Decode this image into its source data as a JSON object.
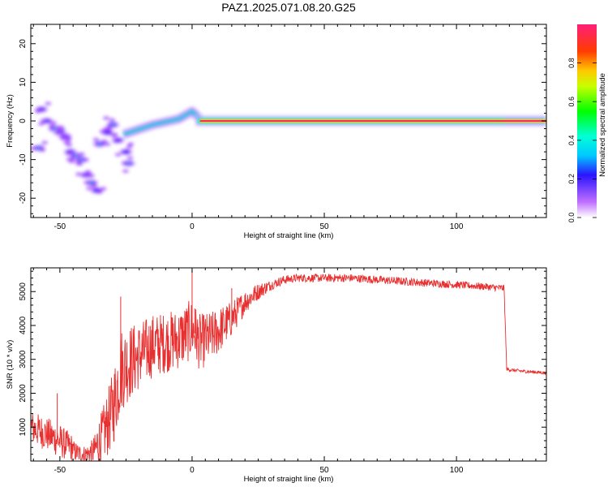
{
  "title": "PAZ1.2025.071.08.20.G25",
  "chart_data": [
    {
      "type": "heatmap",
      "xlabel": "Height of straight line (km)",
      "ylabel": "Frequency (Hz)",
      "xlim": [
        -61,
        134
      ],
      "ylim": [
        -25,
        25
      ],
      "xticks": [
        -50,
        0,
        50,
        100
      ],
      "yticks": [
        -20,
        -10,
        0,
        10,
        20
      ],
      "colorbar": {
        "label": "Normalized spectral amplitude",
        "ticks": [
          "0.0",
          "0.2",
          "0.4",
          "0.6",
          "0.8"
        ],
        "range": [
          0,
          1
        ]
      },
      "features": [
        {
          "name": "main tone",
          "x_start": 3,
          "x_end": 134,
          "freq": 0.0,
          "amplitude": 1.0
        },
        {
          "name": "tracking line",
          "points": [
            [
              -26,
              -3.5
            ],
            [
              -15,
              -1
            ],
            [
              -5,
              0.5
            ],
            [
              0,
              2.5
            ],
            [
              3,
              0.5
            ]
          ]
        },
        {
          "name": "scatter blobs",
          "points": [
            [
              -58,
              -7
            ],
            [
              -57,
              3
            ],
            [
              -55,
              0
            ],
            [
              -52,
              -2
            ],
            [
              -50,
              -3
            ],
            [
              -48,
              -4
            ],
            [
              -46,
              -8
            ],
            [
              -44,
              -9
            ],
            [
              -42,
              -10
            ],
            [
              -40,
              -14
            ],
            [
              -38,
              -16
            ],
            [
              -36,
              -18
            ],
            [
              -35,
              -6
            ],
            [
              -32,
              -3
            ],
            [
              -30,
              -1
            ],
            [
              -28,
              -5
            ],
            [
              -25,
              -8
            ],
            [
              -24,
              -11
            ]
          ]
        }
      ]
    },
    {
      "type": "line",
      "xlabel": "Height of straight line (km)",
      "ylabel": "SNR (10 * v/v)",
      "xlim": [
        -61,
        134
      ],
      "ylim": [
        0,
        5700
      ],
      "xticks": [
        -50,
        0,
        50,
        100
      ],
      "yticks": [
        1000,
        2000,
        3000,
        4000,
        5000
      ],
      "color": "#e83030",
      "envelope": {
        "x": [
          -61,
          -55,
          -48,
          -42,
          -38,
          -34,
          -30,
          -27,
          -24,
          -20,
          -15,
          -10,
          -5,
          0,
          3,
          8,
          15,
          20,
          25,
          30,
          35,
          40,
          50,
          60,
          80,
          100,
          110,
          118,
          119,
          125,
          134
        ],
        "y": [
          1000,
          800,
          500,
          250,
          300,
          700,
          1500,
          2700,
          2900,
          3100,
          3400,
          3500,
          3600,
          3900,
          3500,
          3700,
          4200,
          4700,
          5000,
          5200,
          5350,
          5400,
          5400,
          5400,
          5300,
          5200,
          5150,
          5100,
          2700,
          2650,
          2600
        ]
      },
      "noise": [
        [
          -61,
          500
        ],
        [
          -50,
          500
        ],
        [
          -40,
          300
        ],
        [
          -33,
          900
        ],
        [
          -28,
          1300
        ],
        [
          -20,
          1000
        ],
        [
          -10,
          900
        ],
        [
          0,
          900
        ],
        [
          10,
          700
        ],
        [
          20,
          350
        ],
        [
          30,
          150
        ],
        [
          40,
          120
        ],
        [
          80,
          120
        ],
        [
          118,
          100
        ],
        [
          120,
          50
        ],
        [
          134,
          50
        ]
      ],
      "spikes": [
        [
          -51,
          2000
        ],
        [
          -27,
          4850
        ],
        [
          0,
          5650
        ],
        [
          15,
          5100
        ],
        [
          1,
          4500
        ]
      ]
    }
  ]
}
